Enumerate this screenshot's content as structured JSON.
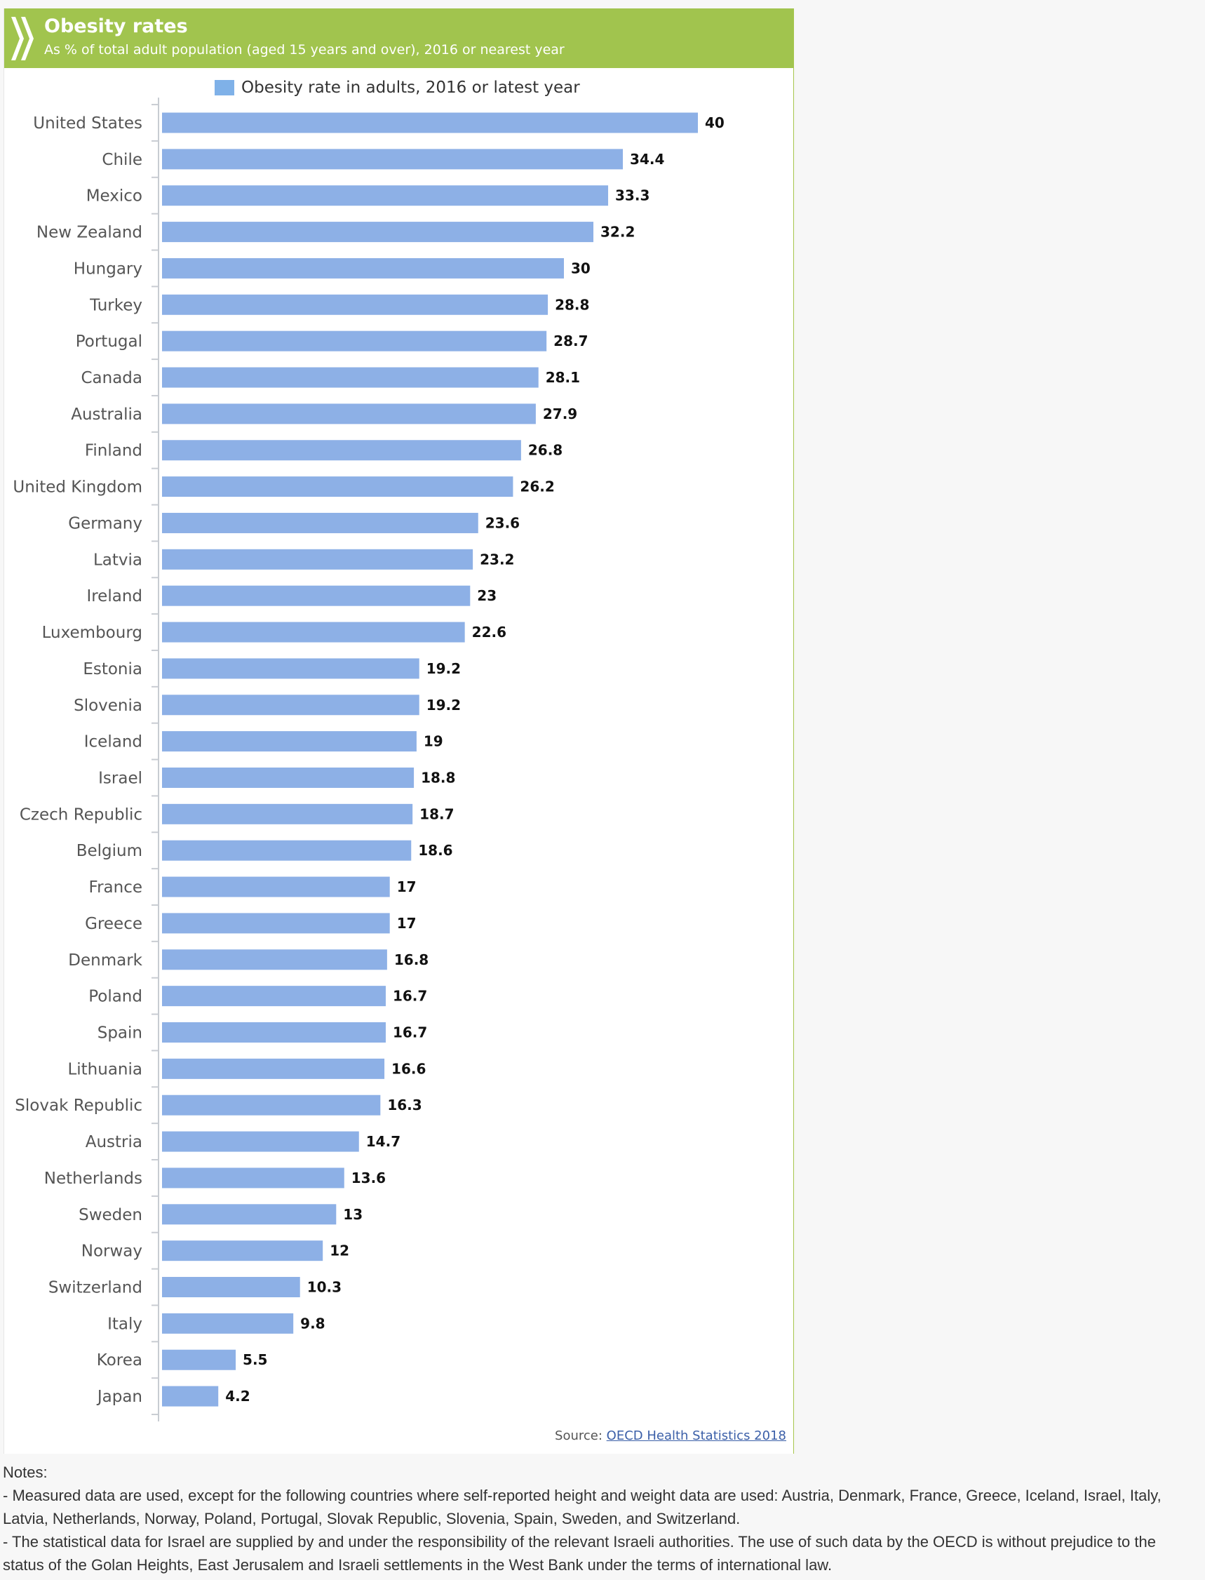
{
  "header": {
    "title": "Obesity rates",
    "subtitle": "As % of total adult population (aged 15 years and over), 2016 or nearest year"
  },
  "source": {
    "label": "Source:",
    "link": "OECD Health Statistics 2018"
  },
  "notes": {
    "heading": "Notes:",
    "lines": [
      "- Measured data are used, except for the following countries where self-reported height and weight data are used: Austria, Denmark, France, Greece, Iceland, Israel, Italy, Latvia, Netherlands, Norway, Poland, Portugal, Slovak Republic, Slovenia, Spain, Sweden, and Switzerland.",
      "- The statistical data for Israel are supplied by and under the responsibility of the relevant Israeli authorities. The use of such data by the OECD is without prejudice to the status of the Golan Heights, East Jerusalem and Israeli settlements in the West Bank under the terms of international law."
    ]
  },
  "colors": {
    "header": "#a1c44e",
    "bar": "#8db0e6",
    "legend": "#7fb1e8"
  },
  "chart_data": {
    "type": "bar",
    "orientation": "horizontal",
    "title": "Obesity rates",
    "legend": [
      "Obesity rate in adults, 2016 or latest year"
    ],
    "legend_position": "top-center",
    "xlim": [
      0,
      40
    ],
    "grid": false,
    "categories": [
      "United States",
      "Chile",
      "Mexico",
      "New Zealand",
      "Hungary",
      "Turkey",
      "Portugal",
      "Canada",
      "Australia",
      "Finland",
      "United Kingdom",
      "Germany",
      "Latvia",
      "Ireland",
      "Luxembourg",
      "Estonia",
      "Slovenia",
      "Iceland",
      "Israel",
      "Czech Republic",
      "Belgium",
      "France",
      "Greece",
      "Denmark",
      "Poland",
      "Spain",
      "Lithuania",
      "Slovak Republic",
      "Austria",
      "Netherlands",
      "Sweden",
      "Norway",
      "Switzerland",
      "Italy",
      "Korea",
      "Japan"
    ],
    "values": [
      40,
      34.4,
      33.3,
      32.2,
      30,
      28.8,
      28.7,
      28.1,
      27.9,
      26.8,
      26.2,
      23.6,
      23.2,
      23,
      22.6,
      19.2,
      19.2,
      19,
      18.8,
      18.7,
      18.6,
      17,
      17,
      16.8,
      16.7,
      16.7,
      16.6,
      16.3,
      14.7,
      13.6,
      13,
      12,
      10.3,
      9.8,
      5.5,
      4.2
    ],
    "labels": [
      "40",
      "34.4",
      "33.3",
      "32.2",
      "30",
      "28.8",
      "28.7",
      "28.1",
      "27.9",
      "26.8",
      "26.2",
      "23.6",
      "23.2",
      "23",
      "22.6",
      "19.2",
      "19.2",
      "19",
      "18.8",
      "18.7",
      "18.6",
      "17",
      "17",
      "16.8",
      "16.7",
      "16.7",
      "16.6",
      "16.3",
      "14.7",
      "13.6",
      "13",
      "12",
      "10.3",
      "9.8",
      "5.5",
      "4.2"
    ]
  }
}
